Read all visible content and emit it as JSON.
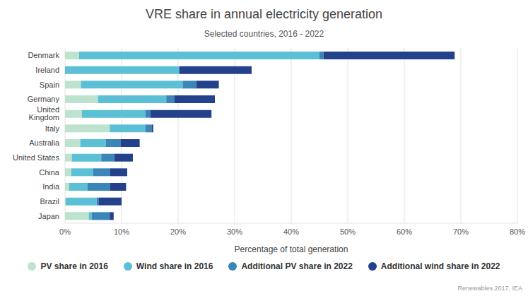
{
  "chart_data": {
    "type": "bar",
    "title": "VRE share in annual electricity generation",
    "subtitle": "Selected countries, 2016 - 2022",
    "x_label": "Percentage of total generation",
    "source": "Renewables 2017, IEA",
    "orientation": "horizontal",
    "stacked": true,
    "grid": true,
    "legend": "bottom",
    "categories": [
      "Denmark",
      "Ireland",
      "Spain",
      "Germany",
      "United Kingdom",
      "Italy",
      "Australia",
      "United States",
      "China",
      "India",
      "Brazil",
      "Japan"
    ],
    "series": [
      {
        "name": "PV share in 2016",
        "color": "#bde3cf",
        "values": [
          2.5,
          0,
          2.8,
          5.8,
          3,
          7.9,
          2.7,
          1.2,
          1.1,
          0.7,
          0.1,
          4.2
        ]
      },
      {
        "name": "Wind share in 2016",
        "color": "#5bc0d6",
        "values": [
          42.5,
          20.2,
          18,
          12.1,
          11.2,
          6.3,
          4.5,
          5.2,
          3.9,
          3.3,
          5.5,
          0.5
        ]
      },
      {
        "name": "Additional PV share in 2022",
        "color": "#3a86b8",
        "values": [
          0.7,
          0,
          2.4,
          1.4,
          0.9,
          1.1,
          2.6,
          2.3,
          3,
          4,
          0.4,
          3.2
        ]
      },
      {
        "name": "Additional wind share in 2022",
        "color": "#24418c",
        "values": [
          23.2,
          12.8,
          4,
          7.2,
          10.8,
          0.3,
          3.4,
          3.3,
          3,
          2.8,
          4,
          0.7
        ]
      }
    ],
    "xlim": [
      0,
      80
    ],
    "xticks": [
      {
        "value": 0,
        "label": "0%"
      },
      {
        "value": 10,
        "label": "10%"
      },
      {
        "value": 20,
        "label": "20%"
      },
      {
        "value": 30,
        "label": "30%"
      },
      {
        "value": 40,
        "label": "40%"
      },
      {
        "value": 50,
        "label": "50%"
      },
      {
        "value": 60,
        "label": "60%"
      },
      {
        "value": 70,
        "label": "70%"
      },
      {
        "value": 80,
        "label": "80%"
      }
    ]
  }
}
